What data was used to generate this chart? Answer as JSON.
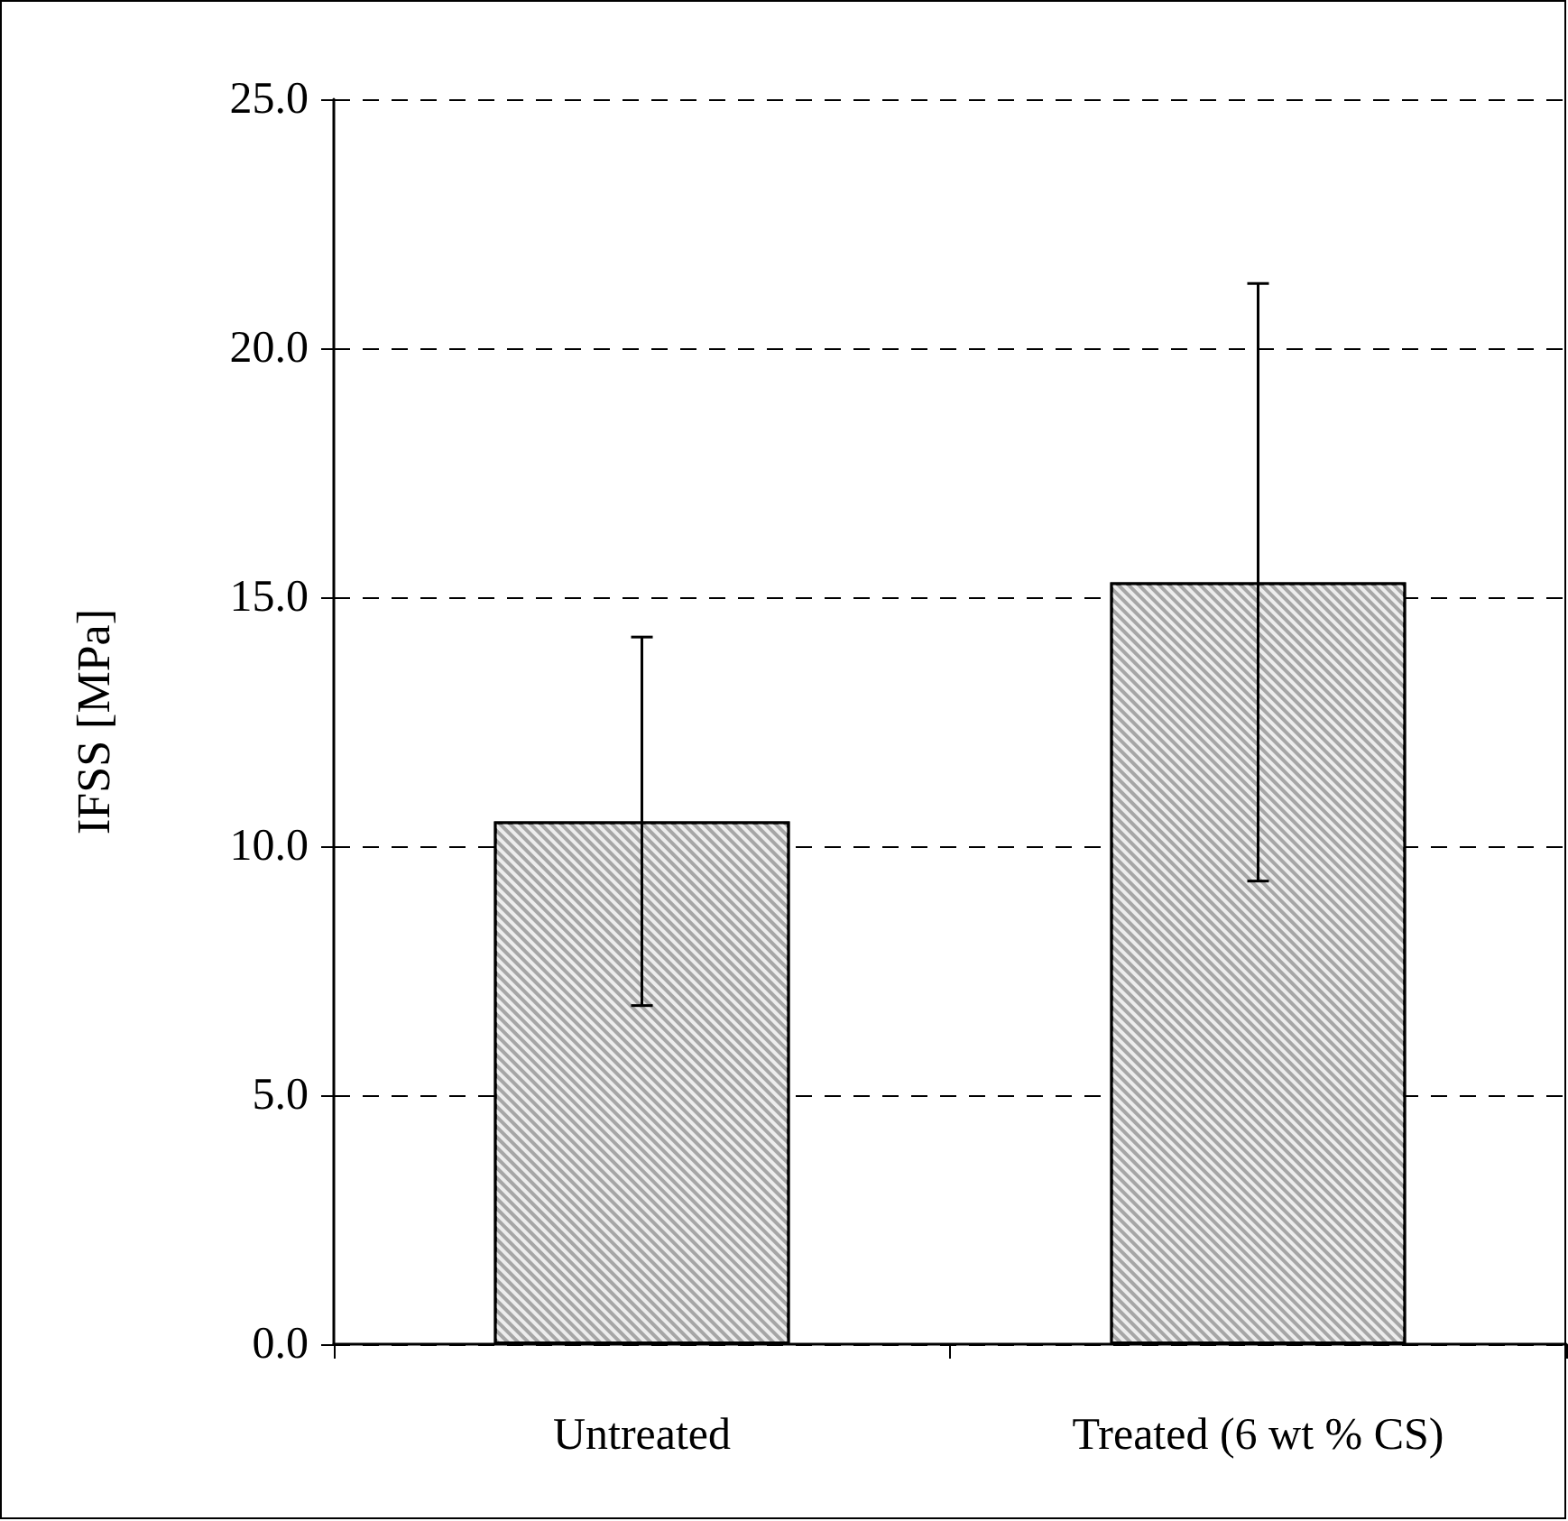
{
  "chart_data": {
    "type": "bar",
    "ylabel": "IFSS [MPa]",
    "categories": [
      "Untreated",
      "Treated (6 wt % CS)"
    ],
    "values": [
      10.5,
      15.3
    ],
    "errors": [
      [
        6.8,
        14.2
      ],
      [
        9.3,
        21.3
      ]
    ],
    "color": "#a6a6a6",
    "ylim": [
      0,
      25
    ],
    "yticks": [
      {
        "value": 0,
        "label": "0.0"
      },
      {
        "value": 5,
        "label": "5.0"
      },
      {
        "value": 10,
        "label": "10.0"
      },
      {
        "value": 15,
        "label": "15.0"
      },
      {
        "value": 20,
        "label": "20.0"
      },
      {
        "value": 25,
        "label": "25.0"
      }
    ],
    "grid": "y"
  }
}
